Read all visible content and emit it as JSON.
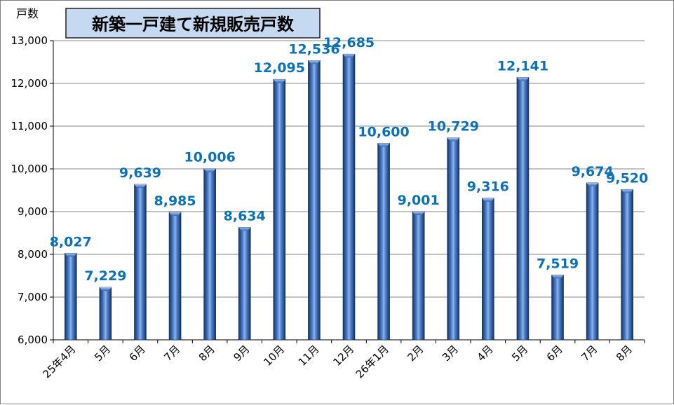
{
  "chart_data": {
    "type": "bar",
    "title": "新築一戸建て新規販売戸数",
    "ylabel": "戸数",
    "xlabel": "",
    "ylim": [
      6000,
      13000
    ],
    "yticks": [
      6000,
      7000,
      8000,
      9000,
      10000,
      11000,
      12000,
      13000
    ],
    "ytick_labels": [
      "6,000",
      "7,000",
      "8,000",
      "9,000",
      "10,000",
      "11,000",
      "12,000",
      "13,000"
    ],
    "categories": [
      "25年4月",
      "5月",
      "6月",
      "7月",
      "8月",
      "9月",
      "10月",
      "11月",
      "12月",
      "26年1月",
      "2月",
      "3月",
      "4月",
      "5月",
      "6月",
      "7月",
      "8月"
    ],
    "values": [
      8027,
      7229,
      9639,
      8985,
      10006,
      8634,
      12095,
      12536,
      12685,
      10600,
      9001,
      10729,
      9316,
      12141,
      7519,
      9674,
      9520
    ],
    "value_labels": [
      "8,027",
      "7,229",
      "9,639",
      "8,985",
      "10,006",
      "8,634",
      "12,095",
      "12,536",
      "12,685",
      "10,600",
      "9,001",
      "10,729",
      "9,316",
      "12,141",
      "7,519",
      "9,674",
      "9,520"
    ],
    "grid": true,
    "legend": "none",
    "colors": {
      "bar_dark": "#14325e",
      "bar_mid": "#2a5aa6",
      "bar_light": "#8fb4ea",
      "data_label": "#0b72b8",
      "grid": "#878787",
      "title_box": "#c5d9f1"
    }
  }
}
